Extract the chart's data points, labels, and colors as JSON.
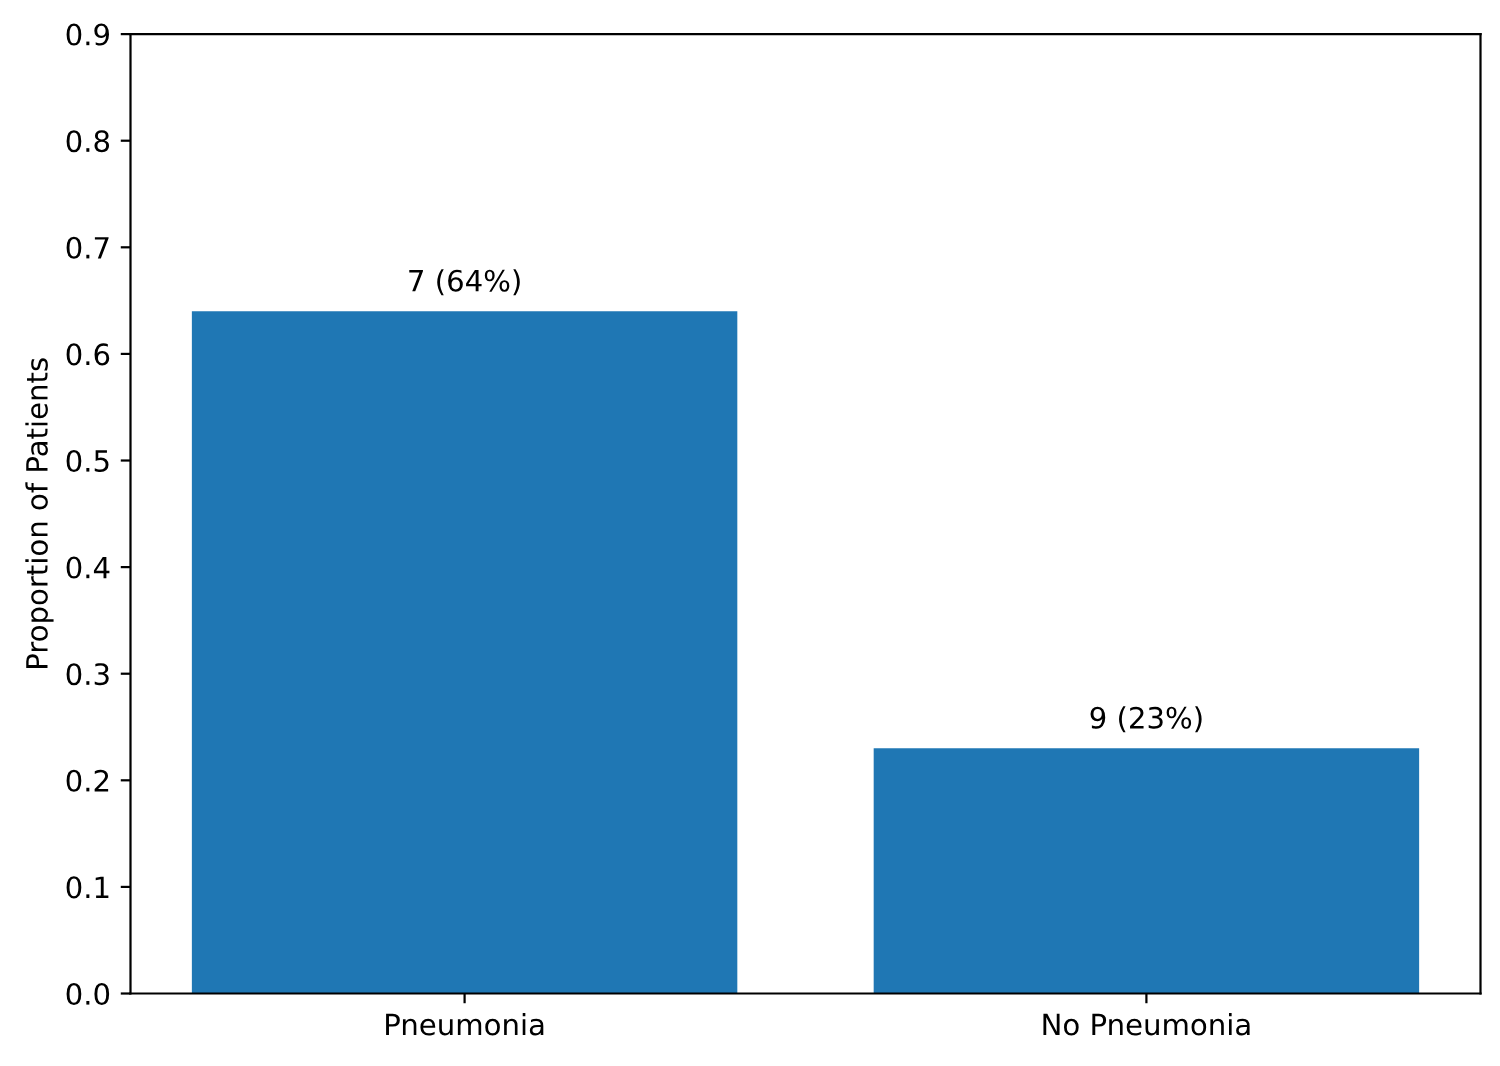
{
  "chart_data": {
    "type": "bar",
    "ylabel": "Proportion of Patients",
    "categories": [
      "Pneumonia",
      "No Pneumonia"
    ],
    "values": [
      0.64,
      0.23
    ],
    "color": "#1f77b4",
    "value_labels": [
      "7 (64%)",
      "9 (23%)"
    ],
    "ylim": [
      0,
      0.9
    ],
    "yticks": [
      {
        "value": 0,
        "label": "0.0"
      },
      0.1,
      0.2,
      0.3,
      0.4,
      0.5,
      0.6,
      0.7,
      0.8,
      0.9
    ],
    "grid": false
  }
}
